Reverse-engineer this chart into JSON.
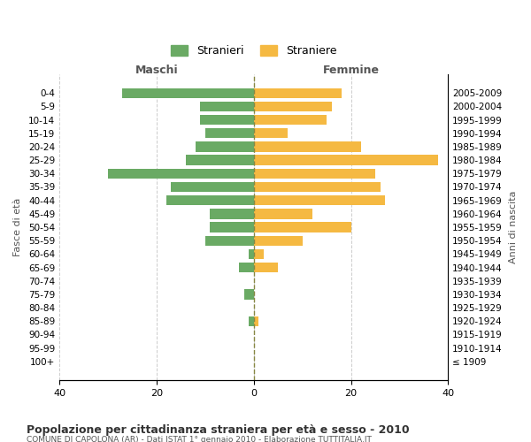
{
  "age_groups": [
    "100+",
    "95-99",
    "90-94",
    "85-89",
    "80-84",
    "75-79",
    "70-74",
    "65-69",
    "60-64",
    "55-59",
    "50-54",
    "45-49",
    "40-44",
    "35-39",
    "30-34",
    "25-29",
    "20-24",
    "15-19",
    "10-14",
    "5-9",
    "0-4"
  ],
  "birth_years": [
    "≤ 1909",
    "1910-1914",
    "1915-1919",
    "1920-1924",
    "1925-1929",
    "1930-1934",
    "1935-1939",
    "1940-1944",
    "1945-1949",
    "1950-1954",
    "1955-1959",
    "1960-1964",
    "1965-1969",
    "1970-1974",
    "1975-1979",
    "1980-1984",
    "1985-1989",
    "1990-1994",
    "1995-1999",
    "2000-2004",
    "2005-2009"
  ],
  "males": [
    0,
    0,
    0,
    1,
    0,
    2,
    0,
    3,
    1,
    10,
    9,
    9,
    18,
    17,
    30,
    14,
    12,
    10,
    11,
    11,
    27
  ],
  "females": [
    0,
    0,
    0,
    1,
    0,
    0,
    0,
    5,
    2,
    10,
    20,
    12,
    27,
    26,
    25,
    38,
    22,
    7,
    15,
    16,
    18
  ],
  "male_color": "#6aaa64",
  "female_color": "#f5b942",
  "title": "Popolazione per cittadinanza straniera per età e sesso - 2010",
  "subtitle": "COMUNE DI CAPOLONA (AR) - Dati ISTAT 1° gennaio 2010 - Elaborazione TUTTITALIA.IT",
  "ylabel_left": "Fasce di età",
  "ylabel_right": "Anni di nascita",
  "xlabel_left": "Maschi",
  "xlabel_right": "Femmine",
  "legend_male": "Stranieri",
  "legend_female": "Straniere",
  "xlim": 40,
  "background_color": "#ffffff",
  "grid_color": "#cccccc",
  "dashed_line_color": "#888844"
}
